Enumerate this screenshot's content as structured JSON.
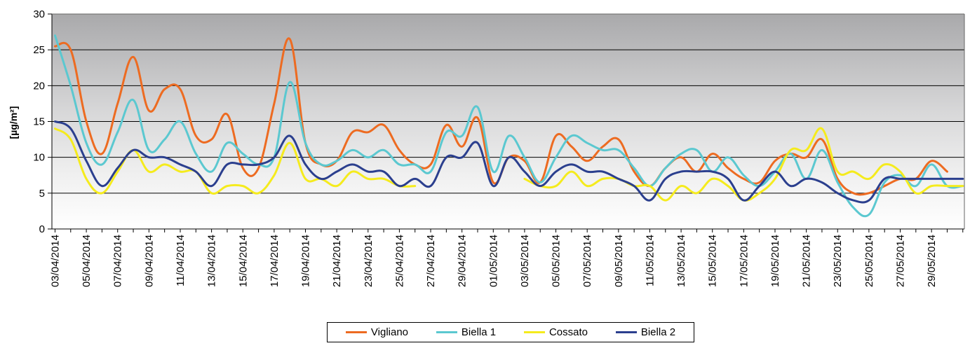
{
  "chart_data": {
    "type": "line",
    "title": "",
    "xlabel": "",
    "ylabel": "[µg/m²]",
    "ylim": [
      0,
      30
    ],
    "yticks": [
      0,
      5,
      10,
      15,
      20,
      25,
      30
    ],
    "grid": true,
    "legend_position": "bottom",
    "x": [
      "03/04/2014",
      "04/04/2014",
      "05/04/2014",
      "06/04/2014",
      "07/04/2014",
      "08/04/2014",
      "09/04/2014",
      "10/04/2014",
      "11/04/2014",
      "12/04/2014",
      "13/04/2014",
      "14/04/2014",
      "15/04/2014",
      "16/04/2014",
      "17/04/2014",
      "18/04/2014",
      "19/04/2014",
      "20/04/2014",
      "21/04/2014",
      "22/04/2014",
      "23/04/2014",
      "24/04/2014",
      "25/04/2014",
      "26/04/2014",
      "27/04/2014",
      "28/04/2014",
      "29/04/2014",
      "30/04/2014",
      "01/05/2014",
      "02/05/2014",
      "03/05/2014",
      "04/05/2014",
      "05/05/2014",
      "06/05/2014",
      "07/05/2014",
      "08/05/2014",
      "09/05/2014",
      "10/05/2014",
      "11/05/2014",
      "12/05/2014",
      "13/05/2014",
      "14/05/2014",
      "15/05/2014",
      "16/05/2014",
      "17/05/2014",
      "18/05/2014",
      "19/05/2014",
      "20/05/2014",
      "21/05/2014",
      "22/05/2014",
      "23/05/2014",
      "24/05/2014",
      "25/05/2014",
      "26/05/2014",
      "27/05/2014",
      "28/05/2014",
      "29/05/2014",
      "30/05/2014",
      "31/05/2014"
    ],
    "x_tick_labels": [
      "03/04/2014",
      "05/04/2014",
      "07/04/2014",
      "09/04/2014",
      "11/04/2014",
      "13/04/2014",
      "15/04/2014",
      "17/04/2014",
      "19/04/2014",
      "21/04/2014",
      "23/04/2014",
      "25/04/2014",
      "27/04/2014",
      "29/04/2014",
      "01/05/2014",
      "03/05/2014",
      "05/05/2014",
      "07/05/2014",
      "09/05/2014",
      "11/05/2014",
      "13/05/2014",
      "15/05/2014",
      "17/05/2014",
      "19/05/2014",
      "21/05/2014",
      "23/05/2014",
      "25/05/2014",
      "27/05/2014",
      "29/05/2014"
    ],
    "series": [
      {
        "name": "Vigliano",
        "color": "#ED6B21",
        "values": [
          25.5,
          25,
          15,
          10.5,
          17.5,
          24,
          16.5,
          19.5,
          19.5,
          13,
          12.5,
          16,
          8.5,
          8.5,
          17.5,
          26.5,
          12,
          9,
          9.5,
          13.5,
          13.5,
          14.5,
          11,
          9,
          9,
          14.5,
          11.5,
          15.5,
          6.5,
          10,
          9.5,
          6.5,
          13,
          11.5,
          9.5,
          11.5,
          12.5,
          8,
          6,
          8.5,
          10,
          8,
          10.5,
          8.5,
          7,
          6.5,
          9.5,
          10.5,
          10,
          12.5,
          7,
          5,
          5,
          6,
          7,
          7,
          9.5,
          8,
          null
        ]
      },
      {
        "name": "Biella 1",
        "color": "#5BC8D0",
        "values": [
          27,
          20,
          12,
          9,
          13.5,
          18,
          11,
          12.5,
          15,
          10.5,
          8,
          12,
          10.5,
          9,
          10,
          20.5,
          12,
          9,
          9.5,
          11,
          10,
          11,
          9,
          9,
          8,
          13.5,
          13,
          17,
          8,
          13,
          10,
          6.5,
          10,
          13,
          12,
          11,
          11,
          8.5,
          6,
          8.5,
          10.5,
          11,
          8,
          10,
          7.5,
          6,
          8,
          10.5,
          7,
          11,
          6.5,
          3,
          2,
          6.5,
          7.5,
          6,
          9,
          6,
          6
        ]
      },
      {
        "name": "Cossato",
        "color": "#F5EB1D",
        "values": [
          14,
          12.5,
          7,
          5,
          8,
          11,
          8,
          9,
          8,
          8,
          5,
          6,
          6,
          5,
          7.5,
          12,
          7,
          7,
          6,
          8,
          7,
          7,
          6,
          6,
          null,
          null,
          null,
          null,
          null,
          null,
          7,
          6,
          6,
          8,
          6,
          7,
          7,
          6,
          6,
          4,
          6,
          5,
          7,
          6,
          4,
          5,
          7,
          11,
          11,
          14,
          8,
          8,
          7,
          9,
          8,
          5,
          6,
          6,
          6
        ]
      },
      {
        "name": "Biella 2",
        "color": "#2B3F8E",
        "values": [
          15,
          14,
          9.5,
          6,
          8.5,
          11,
          10,
          10,
          9,
          8,
          6,
          9,
          9,
          9,
          10,
          13,
          9,
          7,
          8,
          9,
          8,
          8,
          6,
          7,
          6,
          10,
          10,
          12,
          6,
          10,
          8,
          6,
          8,
          9,
          8,
          8,
          7,
          6,
          4,
          7,
          8,
          8,
          8,
          7,
          4,
          6,
          8,
          6,
          7,
          6.5,
          5,
          4,
          4,
          7,
          7,
          7,
          7,
          7,
          7
        ]
      }
    ]
  }
}
